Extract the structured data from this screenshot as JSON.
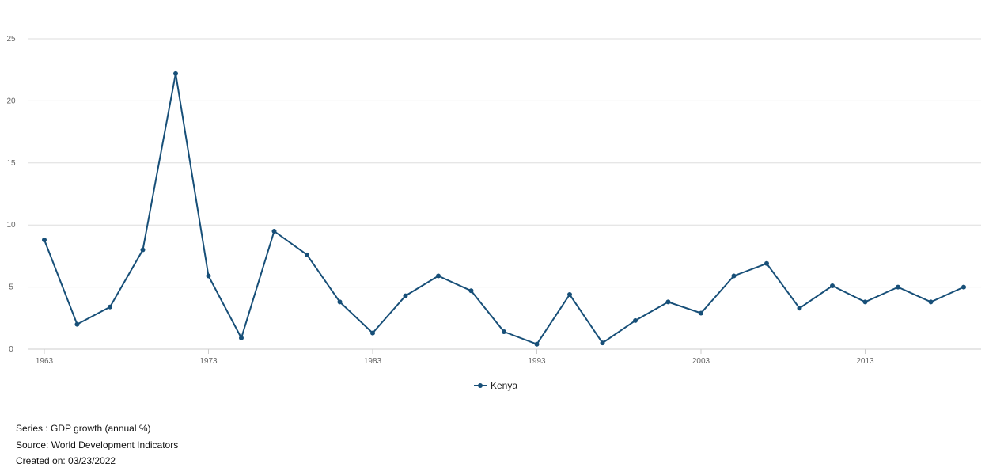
{
  "chart_data": {
    "type": "line",
    "x": [
      1963,
      1965,
      1967,
      1969,
      1971,
      1973,
      1975,
      1977,
      1979,
      1981,
      1983,
      1985,
      1987,
      1989,
      1991,
      1993,
      1995,
      1997,
      1999,
      2001,
      2003,
      2005,
      2007,
      2009,
      2011,
      2013,
      2015,
      2017,
      2019
    ],
    "series": [
      {
        "name": "Kenya",
        "values": [
          8.8,
          2.0,
          3.4,
          8.0,
          22.2,
          5.9,
          0.9,
          9.5,
          7.6,
          3.8,
          1.3,
          4.3,
          5.9,
          4.7,
          1.4,
          0.4,
          4.4,
          0.5,
          2.3,
          3.8,
          2.9,
          5.9,
          6.9,
          3.3,
          5.1,
          3.8,
          5.0,
          3.8,
          5.0
        ],
        "color": "#174f78"
      }
    ],
    "xticks": [
      "1963",
      "1973",
      "1983",
      "1993",
      "2003",
      "2013"
    ],
    "yticks": [
      "0",
      "5",
      "10",
      "15",
      "20",
      "25"
    ],
    "ylim": [
      0,
      25
    ],
    "grid": true,
    "legend_position": "bottom-center"
  },
  "legend": {
    "label": "Kenya"
  },
  "footer": {
    "series": "Series : GDP growth (annual %)",
    "source": "Source: World Development Indicators",
    "created": "Created on: 03/23/2022"
  }
}
